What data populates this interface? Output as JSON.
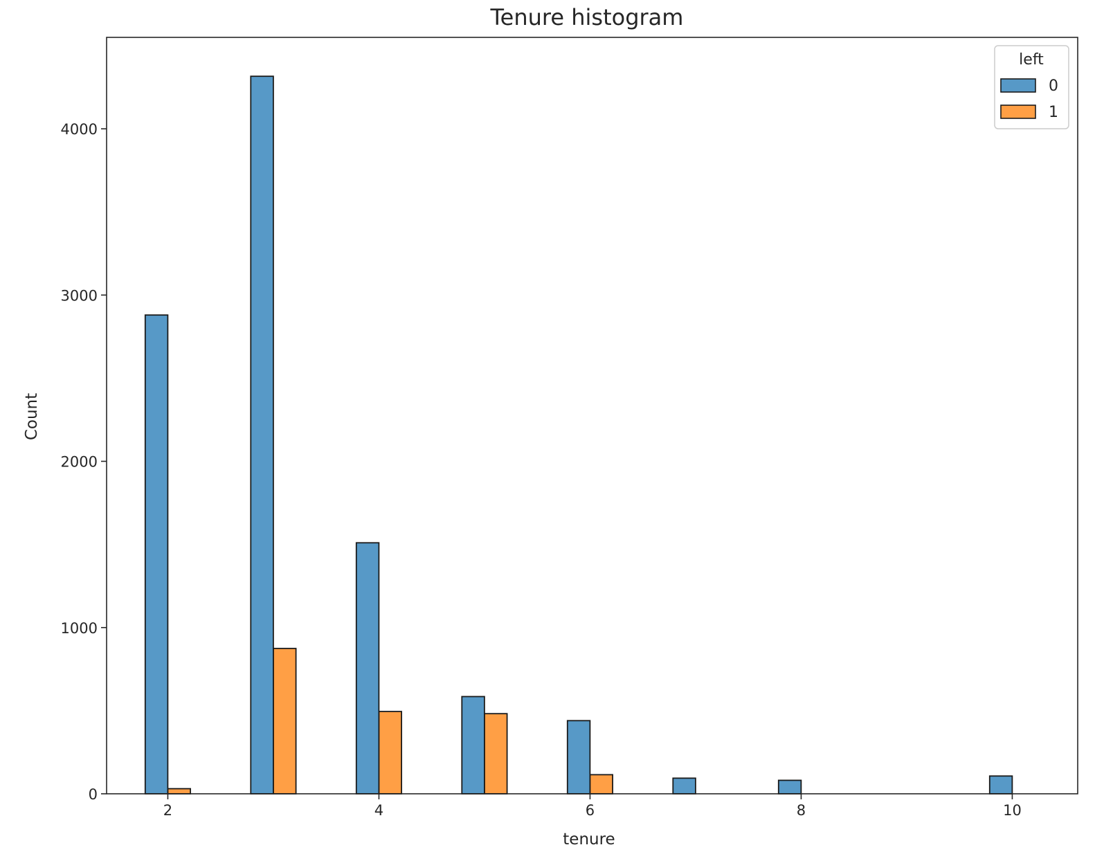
{
  "chart_data": {
    "type": "bar",
    "title": "Tenure histogram",
    "xlabel": "tenure",
    "ylabel": "Count",
    "xlim": [
      1.42,
      10.62
    ],
    "ylim": [
      0,
      4550
    ],
    "xticks": [
      2,
      4,
      6,
      8,
      10
    ],
    "yticks": [
      0,
      1000,
      2000,
      3000,
      4000
    ],
    "grid": false,
    "legend": {
      "title": "left",
      "placement": "top-right"
    },
    "x": [
      2,
      3,
      4,
      5,
      6,
      7,
      8,
      10
    ],
    "bar_width_units": 0.214,
    "series": [
      {
        "name": "0",
        "color": "#5799c7",
        "values": [
          2880,
          4316,
          1510,
          585,
          440,
          94,
          81,
          107
        ]
      },
      {
        "name": "1",
        "color": "#ff9f45",
        "values": [
          31,
          874,
          495,
          482,
          115,
          0,
          0,
          0
        ]
      }
    ]
  }
}
